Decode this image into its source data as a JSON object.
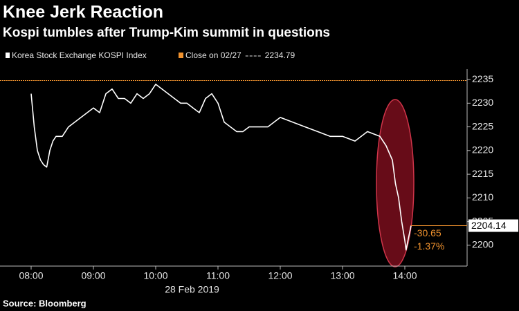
{
  "chart_data": {
    "type": "line",
    "title": "Knee Jerk Reaction",
    "subtitle": "Kospi tumbles after Trump-Kim summit in questions",
    "source": "Source: Bloomberg",
    "xlabel": "28 Feb 2019",
    "x": [
      8.0,
      8.05,
      8.1,
      8.15,
      8.2,
      8.25,
      8.3,
      8.35,
      8.4,
      8.5,
      8.6,
      8.7,
      8.8,
      9.0,
      9.1,
      9.2,
      9.3,
      9.4,
      9.5,
      9.6,
      9.7,
      9.8,
      9.9,
      10.0,
      10.1,
      10.2,
      10.3,
      10.4,
      10.5,
      10.6,
      10.7,
      10.8,
      10.9,
      11.0,
      11.1,
      11.2,
      11.3,
      11.4,
      11.5,
      11.6,
      11.8,
      12.0,
      12.2,
      12.4,
      12.6,
      12.8,
      13.0,
      13.2,
      13.4,
      13.6,
      13.7,
      13.8,
      13.85,
      13.9,
      13.95,
      14.0,
      14.02,
      14.05,
      14.1
    ],
    "series": [
      {
        "name": "Korea Stock Exchange KOSPI Index",
        "color": "#ffffff",
        "values": [
          2232,
          2225,
          2220,
          2218,
          2217,
          2216.5,
          2220,
          2222,
          2223,
          2223,
          2225,
          2226,
          2227,
          2229,
          2228,
          2232,
          2233,
          2231,
          2231,
          2230,
          2232,
          2231,
          2232,
          2234,
          2233,
          2232,
          2231,
          2230,
          2230,
          2229,
          2228,
          2231,
          2232,
          2230,
          2226,
          2225,
          2224,
          2224,
          2225,
          2225,
          2225,
          2227,
          2226,
          2225,
          2224,
          2223,
          2223,
          2222,
          2224,
          2223,
          2221,
          2218,
          2213,
          2210,
          2205,
          2201,
          2199,
          2201,
          2204.14
        ]
      }
    ],
    "reference": {
      "name": "Close on 02/27",
      "value": 2234.79,
      "color": "#f0922e"
    },
    "annotations": [
      {
        "value": -30.65
      },
      {
        "value": -1.37,
        "label": "-1.37%"
      }
    ],
    "xlim": [
      7.5,
      15.0
    ],
    "xticks": [
      {
        "value": 8,
        "label": "08:00"
      },
      {
        "value": 9,
        "label": "09:00"
      },
      {
        "value": 10,
        "label": "10:00"
      },
      {
        "value": 11,
        "label": "11:00"
      },
      {
        "value": 12,
        "label": "12:00"
      },
      {
        "value": 13,
        "label": "13:00"
      },
      {
        "value": 14,
        "label": "14:00"
      }
    ],
    "ylim": [
      2195.6,
      2237.2
    ],
    "yticks": [
      2200,
      2205,
      2210,
      2215,
      2220,
      2225,
      2230,
      2235
    ]
  }
}
